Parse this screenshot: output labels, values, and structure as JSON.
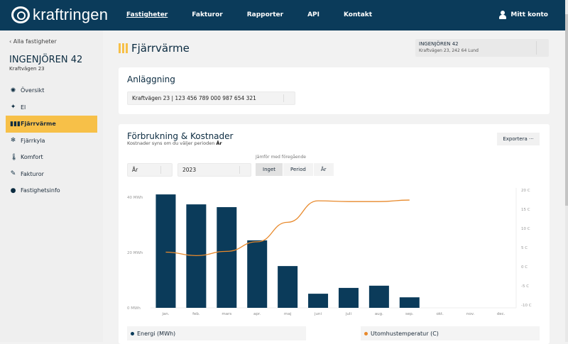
{
  "header": {
    "brand": "kraftringen",
    "nav": [
      "Fastigheter",
      "Fakturor",
      "Rapporter",
      "API",
      "Kontakt"
    ],
    "active_nav": "Fastigheter",
    "account": "Mitt konto"
  },
  "sidebar": {
    "back": "‹ Alla fastigheter",
    "property": "INGENJÖREN 42",
    "address": "Kraftvägen 23",
    "items": [
      {
        "label": "Översikt",
        "icon": "overview-icon",
        "glyph": "✺"
      },
      {
        "label": "El",
        "icon": "electricity-icon",
        "glyph": "✦"
      },
      {
        "label": "Fjärrvärme",
        "icon": "district-heating-icon",
        "glyph": "▮▮▮"
      },
      {
        "label": "Fjärrkyla",
        "icon": "snowflake-icon",
        "glyph": "❄"
      },
      {
        "label": "Komfort",
        "icon": "thermometer-icon",
        "glyph": "🌡"
      },
      {
        "label": "Fakturor",
        "icon": "invoice-icon",
        "glyph": "✎"
      },
      {
        "label": "Fastighetsinfo",
        "icon": "info-bubble-icon",
        "glyph": "●"
      }
    ],
    "active": "Fjärrvärme"
  },
  "page": {
    "title": "Fjärrvärme",
    "property_select": {
      "name": "INGENJÖREN 42",
      "address": "Kraftvägen 23, 242 64 Lund"
    }
  },
  "installation": {
    "title": "Anläggning",
    "value": "Kraftvägen 23 | 123 456 789 000 987 654 321"
  },
  "usage": {
    "title": "Förbrukning & Kostnader",
    "subtitle": "Kostnader syns om du väljer perioden ",
    "subtitle_bold": "År",
    "export": "Exportera",
    "export_icon": "···",
    "period": "År",
    "year": "2023",
    "compare_label": "Jämför med föregående",
    "compare_options": [
      "Inget",
      "Period",
      "År"
    ],
    "compare_selected": "Inget",
    "legend_left": "Energi (MWh)",
    "legend_right": "Utomhustemperatur (C)"
  },
  "colors": {
    "bar": "#0b3b5a",
    "line": "#e8892b",
    "accent": "#f7c048",
    "header": "#0b3b5a"
  },
  "chart_data": {
    "type": "bar+line",
    "categories": [
      "jan.",
      "feb.",
      "mars",
      "apr.",
      "maj",
      "juni",
      "juli",
      "aug.",
      "sep.",
      "okt.",
      "nov.",
      "dec."
    ],
    "series": [
      {
        "name": "Energi (MWh)",
        "type": "bar",
        "axis": "left",
        "values": [
          41,
          37.4,
          36.4,
          24.4,
          15.1,
          5.1,
          7.2,
          8,
          3.8,
          null,
          null,
          null
        ]
      },
      {
        "name": "Utomhustemperatur (C)",
        "type": "line",
        "axis": "right",
        "values": [
          3.8,
          2.9,
          4,
          6.5,
          11.6,
          17.2,
          17,
          17,
          17.4,
          null,
          null,
          null
        ]
      }
    ],
    "y_left": {
      "ticks": [
        "0 MWh",
        "20 MWh",
        "40 MWh"
      ],
      "range": [
        0,
        40
      ]
    },
    "y_right": {
      "ticks": [
        "-10 C",
        "-5 C",
        "0 C",
        "5 C",
        "10 C",
        "15 C",
        "20 C"
      ],
      "range": [
        -10,
        20
      ]
    },
    "grid": false
  }
}
